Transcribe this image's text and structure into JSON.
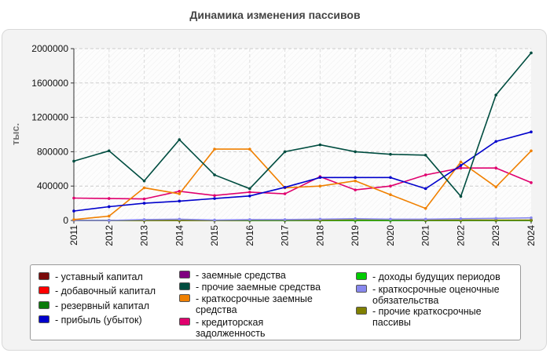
{
  "title": "Динамика изменения пассивов",
  "chart_data": {
    "type": "line",
    "title": "Динамика изменения пассивов",
    "ylabel": "тыс.",
    "xlabel": "",
    "ylim": [
      0,
      2000000
    ],
    "yticks": [
      0,
      400000,
      800000,
      1200000,
      1600000,
      2000000
    ],
    "grid": true,
    "legend_position": "bottom",
    "x": [
      "2011",
      "2012",
      "2013",
      "2014",
      "2015",
      "2016",
      "2017",
      "2018",
      "2019",
      "2020",
      "2021",
      "2022",
      "2023",
      "2024"
    ],
    "series": [
      {
        "name": "- уставный капитал",
        "color": "#7a0a0a",
        "values": [
          0,
          0,
          0,
          0,
          0,
          0,
          0,
          0,
          0,
          0,
          0,
          0,
          0,
          0
        ]
      },
      {
        "name": "- добавочный капитал",
        "color": "#ff0000",
        "values": [
          0,
          0,
          0,
          0,
          0,
          0,
          0,
          0,
          0,
          0,
          0,
          0,
          0,
          0
        ]
      },
      {
        "name": "- резервный капитал",
        "color": "#0a7a0a",
        "values": [
          0,
          0,
          0,
          0,
          0,
          0,
          0,
          0,
          0,
          0,
          0,
          0,
          0,
          0
        ]
      },
      {
        "name": "- прибыль (убыток)",
        "color": "#0000cc",
        "values": [
          110000,
          160000,
          200000,
          225000,
          255000,
          285000,
          385000,
          500000,
          500000,
          500000,
          370000,
          640000,
          920000,
          1030000
        ]
      },
      {
        "name": "- заемные средства",
        "color": "#800080",
        "values": [
          0,
          0,
          0,
          0,
          0,
          0,
          0,
          0,
          0,
          0,
          0,
          0,
          0,
          0
        ]
      },
      {
        "name": "- прочие заемные средства",
        "color": "#004d40",
        "values": [
          690000,
          810000,
          460000,
          940000,
          530000,
          370000,
          800000,
          880000,
          800000,
          770000,
          760000,
          280000,
          1460000,
          1950000
        ]
      },
      {
        "name": "- краткосрочные заемные средства",
        "color": "#f08000",
        "values": [
          10000,
          50000,
          380000,
          310000,
          830000,
          830000,
          380000,
          400000,
          460000,
          300000,
          140000,
          680000,
          390000,
          810000
        ]
      },
      {
        "name": "- кредиторская задолженность",
        "color": "#e0006e",
        "values": [
          260000,
          255000,
          250000,
          340000,
          290000,
          330000,
          310000,
          510000,
          355000,
          400000,
          530000,
          610000,
          610000,
          440000
        ]
      },
      {
        "name": "- доходы будущих периодов",
        "color": "#00cc00",
        "values": [
          0,
          0,
          0,
          0,
          0,
          0,
          0,
          0,
          0,
          0,
          0,
          0,
          0,
          0
        ]
      },
      {
        "name": "- краткосрочные оценочные обязательства",
        "color": "#8888ee",
        "values": [
          0,
          0,
          10000,
          15000,
          5000,
          10000,
          10000,
          15000,
          20000,
          15000,
          15000,
          20000,
          25000,
          30000
        ]
      },
      {
        "name": "- прочие краткосрочные пассивы",
        "color": "#808000",
        "values": [
          0,
          0,
          0,
          0,
          0,
          5000,
          5000,
          5000,
          10000,
          10000,
          5000,
          5000,
          5000,
          5000
        ]
      }
    ]
  }
}
